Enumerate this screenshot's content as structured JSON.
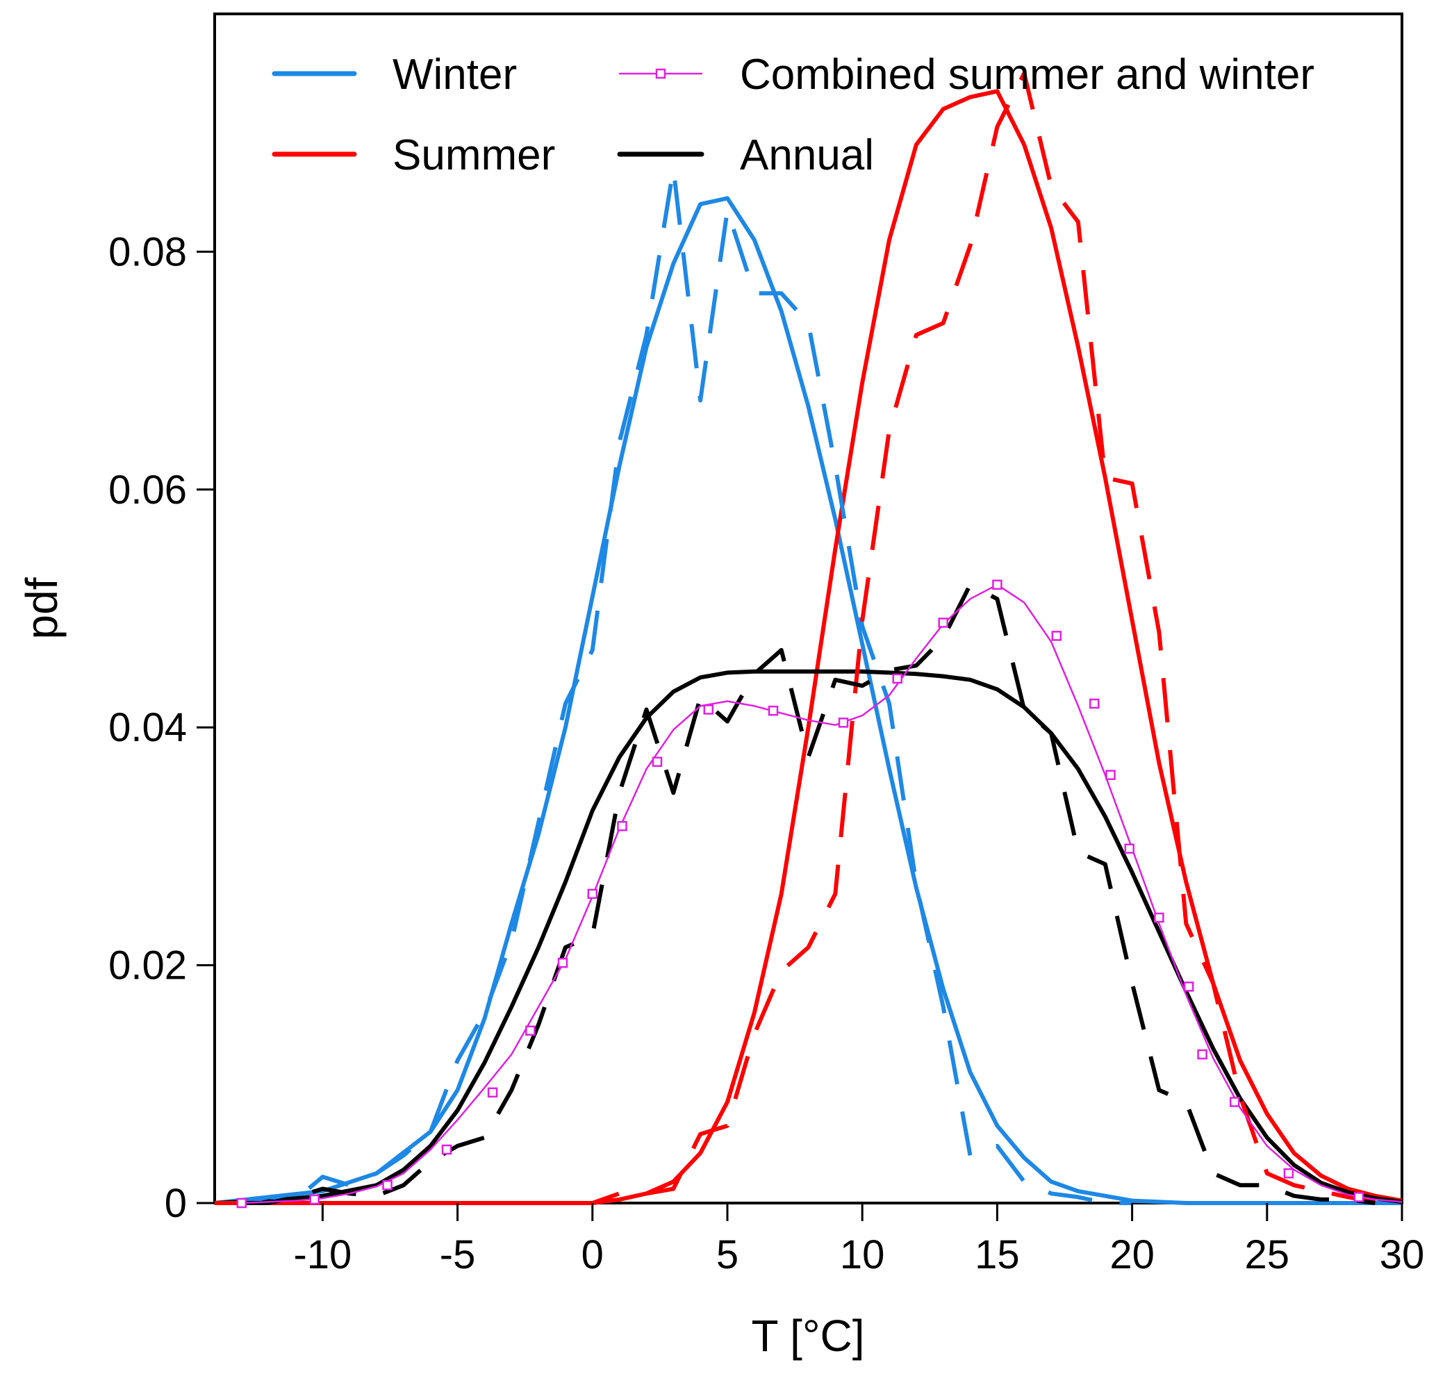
{
  "chart_data": {
    "type": "line",
    "xlabel": "T [°C]",
    "ylabel": "pdf",
    "xlim": [
      -14,
      30
    ],
    "ylim": [
      0,
      0.1
    ],
    "x_ticks": [
      -10,
      -5,
      0,
      5,
      10,
      15,
      20,
      25,
      30
    ],
    "x_tick_labels": [
      "-10",
      "-5",
      "0",
      "5",
      "10",
      "15",
      "20",
      "25",
      "30"
    ],
    "y_ticks": [
      0,
      0.02,
      0.04,
      0.06,
      0.08
    ],
    "y_tick_labels": [
      "0",
      "0.02",
      "0.04",
      "0.06",
      "0.08"
    ],
    "grid": false,
    "legend_position": "top",
    "legend": [
      {
        "label": "Winter",
        "color": "#1e88e5",
        "style": "solid"
      },
      {
        "label": "Summer",
        "color": "#ff0000",
        "style": "solid"
      },
      {
        "label": "Combined summer and winter",
        "color": "#e020e0",
        "style": "marker-line"
      },
      {
        "label": "Annual",
        "color": "#000000",
        "style": "solid"
      }
    ],
    "series": [
      {
        "id": "winter-fit",
        "color": "#1e88e5",
        "style": "solid",
        "width": 6,
        "x": [
          -14,
          -12,
          -10,
          -8,
          -6,
          -5,
          -4,
          -3,
          -2,
          -1,
          0,
          1,
          2,
          3,
          4,
          5,
          6,
          7,
          8,
          9,
          10,
          11,
          12,
          13,
          14,
          15,
          16,
          17,
          18,
          20,
          22,
          25,
          30
        ],
        "y": [
          0,
          0.0005,
          0.001,
          0.0025,
          0.006,
          0.0095,
          0.0155,
          0.0235,
          0.031,
          0.04,
          0.051,
          0.062,
          0.072,
          0.079,
          0.084,
          0.0845,
          0.081,
          0.075,
          0.067,
          0.0575,
          0.047,
          0.0365,
          0.0265,
          0.018,
          0.011,
          0.0065,
          0.0038,
          0.0018,
          0.001,
          0.0002,
          0,
          0,
          0
        ]
      },
      {
        "id": "summer-fit",
        "color": "#ff0000",
        "style": "solid",
        "width": 6,
        "x": [
          -14,
          0,
          1,
          2,
          3,
          4,
          5,
          6,
          7,
          8,
          9,
          10,
          11,
          12,
          13,
          14,
          15,
          16,
          17,
          18,
          19,
          20,
          21,
          22,
          23,
          24,
          25,
          26,
          27,
          28,
          29,
          30
        ],
        "y": [
          0,
          0,
          0.0003,
          0.0008,
          0.0018,
          0.0042,
          0.0085,
          0.016,
          0.026,
          0.04,
          0.055,
          0.069,
          0.081,
          0.089,
          0.092,
          0.093,
          0.0935,
          0.089,
          0.082,
          0.072,
          0.061,
          0.049,
          0.037,
          0.027,
          0.0185,
          0.012,
          0.0075,
          0.0042,
          0.0023,
          0.0012,
          0.0006,
          0.0002
        ]
      },
      {
        "id": "annual-fit",
        "color": "#000000",
        "style": "solid",
        "width": 6,
        "x": [
          -14,
          -12,
          -10,
          -8,
          -7,
          -6,
          -5,
          -4,
          -3,
          -2,
          -1,
          0,
          1,
          2,
          3,
          4,
          5,
          6,
          7,
          8,
          9,
          10,
          11,
          12,
          13,
          14,
          15,
          16,
          17,
          18,
          19,
          20,
          21,
          22,
          23,
          24,
          25,
          26,
          27,
          28,
          29,
          30
        ],
        "y": [
          0,
          0.0002,
          0.0006,
          0.0015,
          0.0028,
          0.0048,
          0.0078,
          0.0118,
          0.0165,
          0.0215,
          0.027,
          0.033,
          0.0375,
          0.0408,
          0.043,
          0.0442,
          0.0446,
          0.0447,
          0.0447,
          0.0447,
          0.0447,
          0.0447,
          0.0446,
          0.0445,
          0.0443,
          0.044,
          0.0432,
          0.0417,
          0.0395,
          0.0365,
          0.0325,
          0.0278,
          0.0228,
          0.0178,
          0.013,
          0.0088,
          0.0055,
          0.0032,
          0.0017,
          0.0009,
          0.0004,
          0.0001
        ]
      },
      {
        "id": "winter-empirical",
        "color": "#1e88e5",
        "style": "dashed",
        "width": 6,
        "x": [
          -13,
          -12,
          -11,
          -10,
          -9,
          -8,
          -7,
          -6,
          -5,
          -4,
          -3,
          -2,
          -1,
          0,
          1,
          2,
          3,
          4,
          5,
          6,
          7,
          8,
          9,
          10,
          11,
          12,
          13,
          14,
          15,
          16,
          17,
          18,
          19,
          20
        ],
        "y": [
          0,
          0.0005,
          0.0003,
          0.0022,
          0.0015,
          0.0025,
          0.004,
          0.006,
          0.012,
          0.016,
          0.022,
          0.032,
          0.042,
          0.0465,
          0.064,
          0.073,
          0.087,
          0.0675,
          0.0835,
          0.0765,
          0.0765,
          0.074,
          0.062,
          0.0485,
          0.042,
          0.0268,
          0.0165,
          0.004,
          0.0048,
          0.0018,
          0.0008,
          0.0005,
          0,
          0
        ]
      },
      {
        "id": "summer-empirical",
        "color": "#ff0000",
        "style": "dashed",
        "width": 6,
        "x": [
          -14,
          0,
          1,
          2,
          3,
          4,
          5,
          6,
          7,
          8,
          9,
          10,
          11,
          12,
          13,
          14,
          15,
          16,
          17,
          18,
          19,
          20,
          21,
          22,
          23,
          24,
          25,
          26,
          27,
          28,
          29,
          30
        ],
        "y": [
          0,
          0,
          0.0008,
          0.0008,
          0.0012,
          0.0058,
          0.0065,
          0.0142,
          0.0195,
          0.0215,
          0.026,
          0.049,
          0.065,
          0.073,
          0.074,
          0.0805,
          0.0905,
          0.095,
          0.0855,
          0.0825,
          0.061,
          0.0605,
          0.048,
          0.0235,
          0.0185,
          0.009,
          0.0025,
          0.0015,
          0.001,
          0.0005,
          0.0001,
          0.0001
        ]
      },
      {
        "id": "annual-empirical",
        "color": "#000000",
        "style": "dashed",
        "width": 6,
        "x": [
          -13,
          -12,
          -11,
          -10,
          -9,
          -8,
          -7,
          -6,
          -5,
          -4,
          -3,
          -2,
          -1,
          0,
          1,
          2,
          3,
          4,
          5,
          6,
          7,
          8,
          9,
          10,
          11,
          12,
          13,
          14,
          15,
          16,
          17,
          18,
          19,
          20,
          21,
          22,
          23,
          24,
          25,
          26,
          27,
          28,
          29
        ],
        "y": [
          0,
          0,
          0.0005,
          0.0012,
          0.0008,
          0.0006,
          0.0015,
          0.0035,
          0.0048,
          0.0055,
          0.0095,
          0.015,
          0.0215,
          0.0225,
          0.0345,
          0.0415,
          0.0345,
          0.0425,
          0.0405,
          0.0445,
          0.0465,
          0.0375,
          0.044,
          0.0435,
          0.0448,
          0.0452,
          0.0475,
          0.052,
          0.0508,
          0.0415,
          0.0395,
          0.0295,
          0.0285,
          0.0185,
          0.0095,
          0.0085,
          0.0025,
          0.0015,
          0.0015,
          0.0006,
          0.0003,
          0.0003,
          0
        ]
      },
      {
        "id": "combined",
        "color": "#e020e0",
        "style": "marker-line",
        "width": 2.5,
        "x": [
          -13,
          -12,
          -11,
          -10,
          -9,
          -8,
          -7,
          -6,
          -5,
          -4,
          -3,
          -2,
          -1,
          0,
          1,
          2,
          3,
          4,
          5,
          6,
          7,
          8,
          9,
          10,
          11,
          12,
          13,
          14,
          15,
          16,
          17,
          18,
          19,
          20,
          21,
          22,
          23,
          24,
          25,
          26,
          27,
          28,
          29,
          30
        ],
        "y": [
          0,
          0.0001,
          0.0002,
          0.0004,
          0.0008,
          0.0014,
          0.0025,
          0.0045,
          0.007,
          0.0097,
          0.0125,
          0.0165,
          0.0205,
          0.0258,
          0.0315,
          0.0365,
          0.0398,
          0.0418,
          0.0422,
          0.0418,
          0.0412,
          0.0406,
          0.0402,
          0.041,
          0.0427,
          0.0458,
          0.0487,
          0.0508,
          0.052,
          0.0505,
          0.0472,
          0.0418,
          0.036,
          0.0298,
          0.0235,
          0.0175,
          0.0122,
          0.008,
          0.0048,
          0.0028,
          0.0015,
          0.0007,
          0.0003,
          0.0001
        ],
        "marker_x": [
          -13,
          -10.3,
          -7.6,
          -5.4,
          -3.7,
          -2.3,
          -1.1,
          0,
          1.1,
          2.4,
          4.3,
          6.7,
          9.3,
          11.3,
          13,
          15,
          17.2,
          18.6,
          19.2,
          19.9,
          21,
          22.1,
          22.6,
          23.8,
          25.8,
          28.4
        ],
        "marker_y": [
          0,
          0.0003,
          0.0015,
          0.0045,
          0.0093,
          0.0145,
          0.0202,
          0.026,
          0.0317,
          0.0371,
          0.0415,
          0.0414,
          0.0404,
          0.0441,
          0.0488,
          0.052,
          0.0477,
          0.042,
          0.036,
          0.0298,
          0.024,
          0.0182,
          0.0125,
          0.0085,
          0.0025,
          0.0005
        ]
      }
    ]
  }
}
